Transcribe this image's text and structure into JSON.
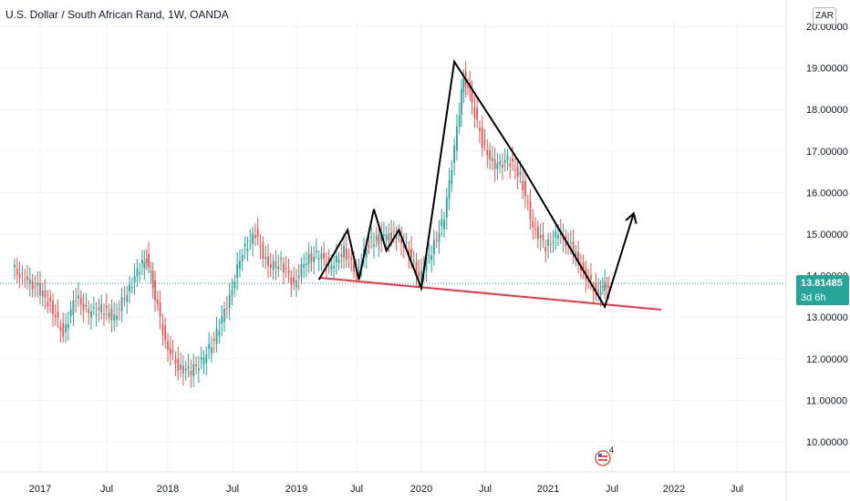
{
  "header": {
    "title": "U.S. Dollar / South African Rand, 1W, OANDA",
    "currency_badge": "ZAR"
  },
  "price_badge": {
    "price": "13.81485",
    "countdown": "3d 6h"
  },
  "colors": {
    "up": "#26a69a",
    "down": "#ef5350",
    "support_line": "#f23645",
    "pattern_line": "#000000",
    "grid": "#f0f3fa"
  },
  "chart_data": {
    "type": "line",
    "title": "U.S. Dollar / South African Rand, 1W, OANDA",
    "xlabel": "",
    "ylabel": "",
    "x_ticks": [
      "2017",
      "Jul",
      "2018",
      "Jul",
      "2019",
      "Jul",
      "2020",
      "Jul",
      "2021",
      "Jul",
      "2022",
      "Jul"
    ],
    "y_ticks": [
      "10.00000",
      "11.00000",
      "12.00000",
      "13.00000",
      "14.00000",
      "15.00000",
      "16.00000",
      "17.00000",
      "18.00000",
      "19.00000",
      "20.00000"
    ],
    "ylim": [
      9.1,
      20.3
    ],
    "xlim": [
      2016.77,
      2022.55
    ],
    "grid": true,
    "last_price": 13.81485,
    "series": [
      {
        "values": [
          [
            2016.8,
            14.2
          ],
          [
            2016.9,
            13.9
          ],
          [
            2017.0,
            13.7
          ],
          [
            2017.1,
            13.3
          ],
          [
            2017.2,
            12.6
          ],
          [
            2017.3,
            13.5
          ],
          [
            2017.4,
            13.1
          ],
          [
            2017.5,
            13.2
          ],
          [
            2017.6,
            13.0
          ],
          [
            2017.7,
            13.6
          ],
          [
            2017.8,
            14.2
          ],
          [
            2017.85,
            14.4
          ],
          [
            2017.9,
            13.8
          ],
          [
            2018.0,
            12.4
          ],
          [
            2018.1,
            11.8
          ],
          [
            2018.2,
            11.7
          ],
          [
            2018.3,
            12.0
          ],
          [
            2018.4,
            12.6
          ],
          [
            2018.5,
            13.5
          ],
          [
            2018.6,
            14.6
          ],
          [
            2018.7,
            15.0
          ],
          [
            2018.8,
            14.2
          ],
          [
            2018.9,
            14.3
          ],
          [
            2019.0,
            13.8
          ],
          [
            2019.1,
            14.4
          ],
          [
            2019.2,
            14.5
          ],
          [
            2019.3,
            14.2
          ],
          [
            2019.4,
            14.6
          ],
          [
            2019.5,
            14.1
          ],
          [
            2019.6,
            14.8
          ],
          [
            2019.7,
            14.9
          ],
          [
            2019.8,
            15.0
          ],
          [
            2019.9,
            14.7
          ],
          [
            2020.0,
            14.0
          ],
          [
            2020.1,
            14.6
          ],
          [
            2020.2,
            15.4
          ],
          [
            2020.3,
            17.5
          ],
          [
            2020.35,
            18.8
          ],
          [
            2020.4,
            18.4
          ],
          [
            2020.5,
            17.2
          ],
          [
            2020.6,
            16.6
          ],
          [
            2020.7,
            16.8
          ],
          [
            2020.8,
            16.4
          ],
          [
            2020.9,
            15.2
          ],
          [
            2021.0,
            14.7
          ],
          [
            2021.1,
            15.0
          ],
          [
            2021.2,
            14.7
          ],
          [
            2021.3,
            14.1
          ],
          [
            2021.4,
            13.6
          ],
          [
            2021.45,
            13.7
          ],
          [
            2021.5,
            13.8
          ]
        ]
      }
    ],
    "drawings": {
      "pattern": [
        [
          2019.18,
          13.9
        ],
        [
          2019.41,
          15.1
        ],
        [
          2019.5,
          13.9
        ],
        [
          2019.62,
          15.6
        ],
        [
          2019.72,
          14.6
        ],
        [
          2019.82,
          15.1
        ],
        [
          2020.0,
          13.7
        ],
        [
          2020.26,
          19.15
        ],
        [
          2020.8,
          16.6
        ],
        [
          2021.45,
          13.25
        ],
        [
          2021.68,
          15.5
        ]
      ],
      "support_line": [
        [
          2019.18,
          13.95
        ],
        [
          2021.9,
          13.18
        ]
      ]
    }
  }
}
